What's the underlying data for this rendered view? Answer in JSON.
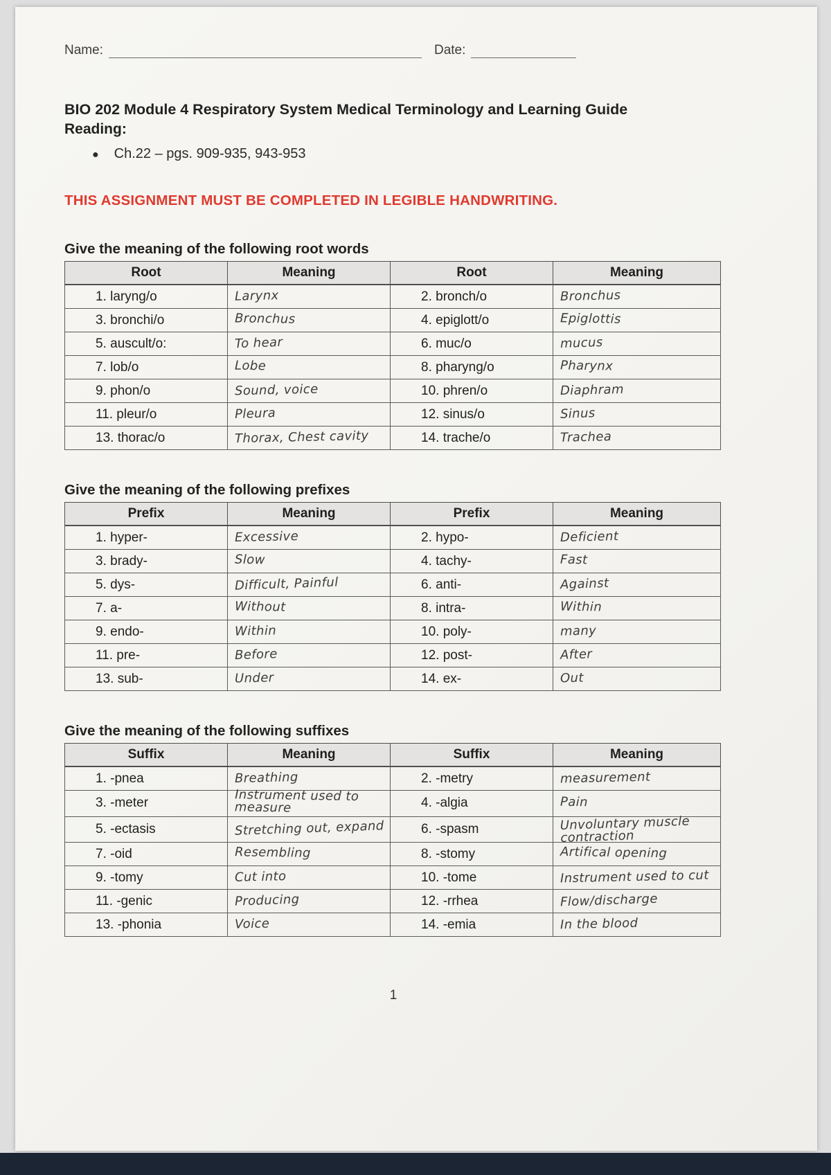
{
  "page": {
    "name_label": "Name:",
    "date_label": "Date:",
    "title": "BIO 202 Module 4 Respiratory System Medical Terminology and Learning Guide",
    "reading_label": "Reading:",
    "bullet_glyph": "●",
    "reading_item": "Ch.22 – pgs. 909-935, 943-953",
    "warning": "THIS ASSIGNMENT MUST BE COMPLETED IN LEGIBLE HANDWRITING.",
    "warning_color": "#df3a30",
    "page_number": "1"
  },
  "tables": [
    {
      "heading": "Give the meaning of the following root words",
      "term_header": "Root",
      "meaning_header": "Meaning",
      "rows": [
        {
          "left_term": "1. laryng/o",
          "left_meaning": "Larynx",
          "right_term": "2. bronch/o",
          "right_meaning": "Bronchus"
        },
        {
          "left_term": "3. bronchi/o",
          "left_meaning": "Bronchus",
          "right_term": "4. epiglott/o",
          "right_meaning": "Epiglottis"
        },
        {
          "left_term": "5. auscult/o:",
          "left_meaning": "To hear",
          "right_term": "6. muc/o",
          "right_meaning": "mucus"
        },
        {
          "left_term": "7. lob/o",
          "left_meaning": "Lobe",
          "right_term": "8. pharyng/o",
          "right_meaning": "Pharynx"
        },
        {
          "left_term": "9. phon/o",
          "left_meaning": "Sound, voice",
          "right_term": "10. phren/o",
          "right_meaning": "Diaphram"
        },
        {
          "left_term": "11. pleur/o",
          "left_meaning": "Pleura",
          "right_term": "12. sinus/o",
          "right_meaning": "Sinus"
        },
        {
          "left_term": "13. thorac/o",
          "left_meaning": "Thorax, Chest cavity",
          "right_term": "14. trache/o",
          "right_meaning": "Trachea"
        }
      ]
    },
    {
      "heading": "Give the meaning of the following prefixes",
      "term_header": "Prefix",
      "meaning_header": "Meaning",
      "rows": [
        {
          "left_term": "1. hyper-",
          "left_meaning": "Excessive",
          "right_term": "2. hypo-",
          "right_meaning": "Deficient"
        },
        {
          "left_term": "3. brady-",
          "left_meaning": "Slow",
          "right_term": "4. tachy-",
          "right_meaning": "Fast"
        },
        {
          "left_term": "5. dys-",
          "left_meaning": "Difficult, Painful",
          "right_term": "6. anti-",
          "right_meaning": "Against"
        },
        {
          "left_term": "7. a-",
          "left_meaning": "Without",
          "right_term": "8. intra-",
          "right_meaning": "Within"
        },
        {
          "left_term": "9. endo-",
          "left_meaning": "Within",
          "right_term": "10. poly-",
          "right_meaning": "many"
        },
        {
          "left_term": "11. pre-",
          "left_meaning": "Before",
          "right_term": "12. post-",
          "right_meaning": "After"
        },
        {
          "left_term": "13. sub-",
          "left_meaning": "Under",
          "right_term": "14. ex-",
          "right_meaning": "Out"
        }
      ]
    },
    {
      "heading": "Give the meaning of the following suffixes",
      "term_header": "Suffix",
      "meaning_header": "Meaning",
      "rows": [
        {
          "left_term": "1. -pnea",
          "left_meaning": "Breathing",
          "right_term": "2. -metry",
          "right_meaning": "measurement"
        },
        {
          "left_term": "3. -meter",
          "left_meaning": "Instrument used to measure",
          "right_term": "4. -algia",
          "right_meaning": "Pain"
        },
        {
          "left_term": "5. -ectasis",
          "left_meaning": "Stretching out, expand",
          "right_term": "6. -spasm",
          "right_meaning": "Unvoluntary muscle contraction"
        },
        {
          "left_term": "7. -oid",
          "left_meaning": "Resembling",
          "right_term": "8. -stomy",
          "right_meaning": "Artifical opening"
        },
        {
          "left_term": "9. -tomy",
          "left_meaning": "Cut into",
          "right_term": "10. -tome",
          "right_meaning": "Instrument used to cut"
        },
        {
          "left_term": "11. -genic",
          "left_meaning": "Producing",
          "right_term": "12. -rrhea",
          "right_meaning": "Flow/discharge"
        },
        {
          "left_term": "13. -phonia",
          "left_meaning": "Voice",
          "right_term": "14. -emia",
          "right_meaning": "In the blood"
        }
      ]
    }
  ]
}
